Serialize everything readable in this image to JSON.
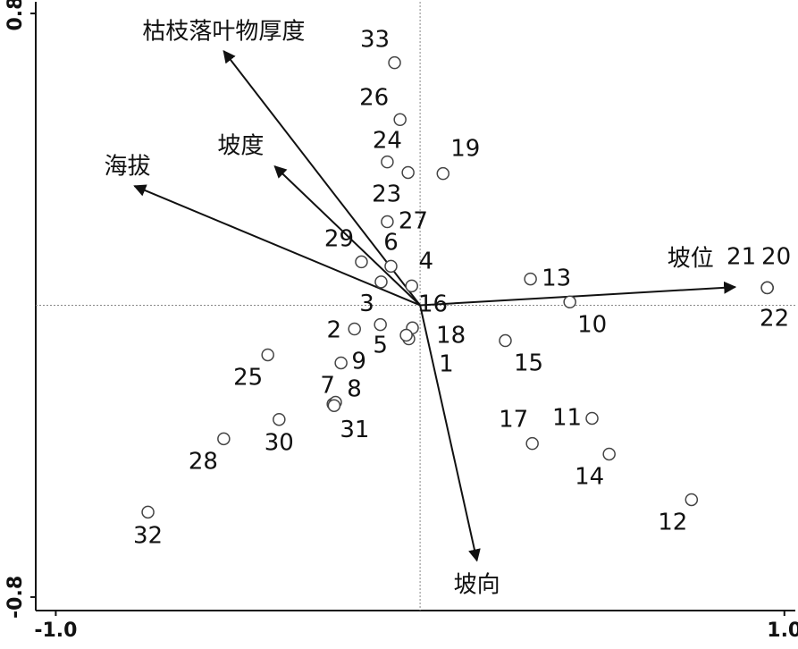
{
  "chart_data": {
    "type": "biplot",
    "xlim": [
      -1.055,
      1.03
    ],
    "ylim": [
      -0.837,
      0.832
    ],
    "xticks": [
      {
        "value": -1.0,
        "label": "-1.0"
      },
      {
        "value": 1.0,
        "label": "1.0"
      }
    ],
    "yticks": [
      -0.8,
      0.8
    ],
    "sites": {
      "labels": [
        "1",
        "2",
        "3",
        "4",
        "5",
        "6",
        "7",
        "8",
        "9",
        "10",
        "11",
        "12",
        "13",
        "14",
        "15",
        "16",
        "17",
        "18",
        "19",
        "20",
        "21",
        "22",
        "23",
        "24",
        "25",
        "26",
        "27",
        "28",
        "29",
        "30",
        "31",
        "32",
        "33"
      ],
      "x": [
        -0.031,
        -0.18,
        -0.107,
        -0.023,
        -0.109,
        -0.08,
        -0.239,
        -0.232,
        -0.217,
        0.411,
        0.472,
        0.745,
        0.303,
        0.519,
        0.234,
        -0.021,
        0.308,
        -0.038,
        0.063,
        0.953,
        0.953,
        0.953,
        -0.033,
        -0.09,
        -0.418,
        -0.055,
        -0.09,
        -0.539,
        -0.161,
        -0.387,
        -0.236,
        -0.747,
        -0.07
      ],
      "y": [
        -0.092,
        -0.065,
        0.064,
        0.053,
        -0.053,
        0.107,
        -0.271,
        -0.266,
        -0.158,
        0.009,
        -0.31,
        -0.533,
        0.072,
        -0.408,
        -0.097,
        -0.062,
        -0.379,
        -0.082,
        0.361,
        0.048,
        0.048,
        0.048,
        0.364,
        0.393,
        -0.136,
        0.509,
        0.229,
        -0.366,
        0.119,
        -0.313,
        -0.275,
        -0.567,
        0.665
      ]
    },
    "vectors": [
      {
        "name": "枯枝落叶物厚度",
        "x": -0.539,
        "y": 0.697
      },
      {
        "name": "坡度",
        "x": -0.399,
        "y": 0.381
      },
      {
        "name": "海拔",
        "x": -0.784,
        "y": 0.327
      },
      {
        "name": "坡位",
        "x": 0.865,
        "y": 0.05
      },
      {
        "name": "坡向",
        "x": 0.156,
        "y": -0.7
      }
    ]
  }
}
